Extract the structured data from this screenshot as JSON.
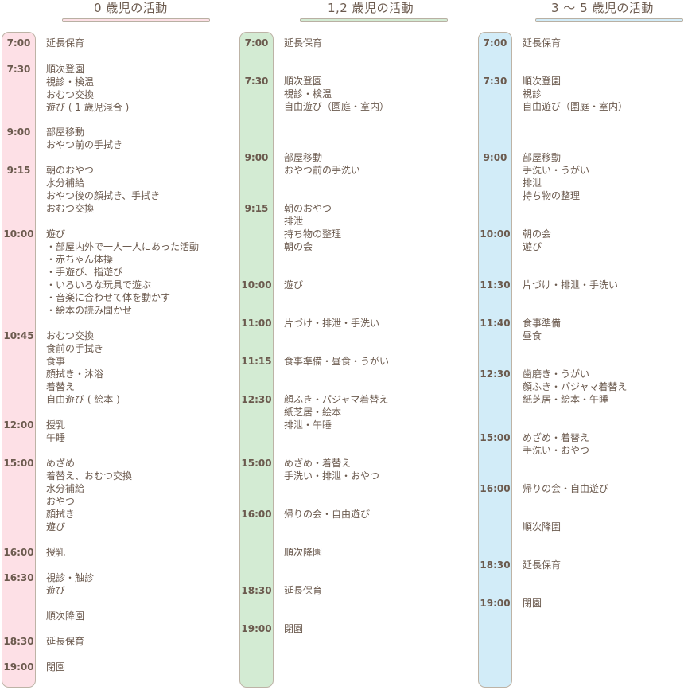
{
  "colors": {
    "text": "#6b5a4e",
    "border": "#bdb3a6",
    "age0_fill": "#fde0e6",
    "age12_fill": "#d3ebd3",
    "age35_fill": "#d2ecf8"
  },
  "columns": [
    {
      "key": "age-0",
      "title": "0 歳児の活動",
      "fill": "#fde0e6",
      "entries": [
        {
          "time": "7:00",
          "lines": [
            "延長保育"
          ]
        },
        {
          "time": "7:30",
          "lines": [
            "順次登園",
            "視診・検温",
            "おむつ交換",
            "遊び ( 1 歳児混合 )"
          ]
        },
        {
          "time": "9:00",
          "lines": [
            "部屋移動",
            "おやつ前の手拭き"
          ]
        },
        {
          "time": "9:15",
          "lines": [
            "朝のおやつ",
            "水分補給",
            "おやつ後の顔拭き、手拭き",
            "おむつ交換"
          ]
        },
        {
          "time": "10:00",
          "lines": [
            "遊び",
            "・部屋内外で一人一人にあった活動",
            "・赤ちゃん体操",
            "・手遊び、指遊び",
            "・いろいろな玩具で遊ぶ",
            "・音楽に合わせて体を動かす",
            "・絵本の読み聞かせ"
          ]
        },
        {
          "time": "10:45",
          "lines": [
            "おむつ交換",
            "食前の手拭き",
            "食事",
            "顔拭き・沐浴",
            "着替え",
            "自由遊び ( 絵本 )"
          ]
        },
        {
          "time": "12:00",
          "lines": [
            "授乳",
            "午睡"
          ]
        },
        {
          "time": "15:00",
          "lines": [
            "めざめ",
            "着替え、おむつ交換",
            "水分補給",
            "おやつ",
            "顔拭き",
            "遊び"
          ]
        },
        {
          "time": "16:00",
          "lines": [
            "授乳"
          ]
        },
        {
          "time": "16:30",
          "lines": [
            "視診・触診",
            "遊び"
          ]
        },
        {
          "time": "",
          "lines": [
            "順次降園"
          ]
        },
        {
          "time": "18:30",
          "lines": [
            "延長保育"
          ]
        },
        {
          "time": "19:00",
          "lines": [
            "閉園"
          ]
        }
      ]
    },
    {
      "key": "age-1-2",
      "title": "1,2 歳児の活動",
      "fill": "#d3ebd3",
      "entries": [
        {
          "time": "7:00",
          "lines": [
            "延長保育"
          ]
        },
        {
          "time": "7:30",
          "lines": [
            "順次登園",
            "視診・検温",
            "自由遊び（園庭・室内）"
          ]
        },
        {
          "time": "9:00",
          "lines": [
            "部屋移動",
            "おやつ前の手洗い"
          ]
        },
        {
          "time": "9:15",
          "lines": [
            "朝のおやつ",
            "排泄",
            "持ち物の整理",
            "朝の会"
          ]
        },
        {
          "time": "10:00",
          "lines": [
            "遊び"
          ]
        },
        {
          "time": "11:00",
          "lines": [
            "片づけ・排泄・手洗い"
          ]
        },
        {
          "time": "11:15",
          "lines": [
            "食事準備・昼食・うがい"
          ]
        },
        {
          "time": "12:30",
          "lines": [
            "顔ふき・パジャマ着替え",
            "紙芝居・絵本",
            "排泄・午睡"
          ]
        },
        {
          "time": "15:00",
          "lines": [
            "めざめ・着替え",
            "手洗い・排泄・おやつ"
          ]
        },
        {
          "time": "16:00",
          "lines": [
            "帰りの会・自由遊び"
          ]
        },
        {
          "time": "",
          "lines": [
            "順次降園"
          ]
        },
        {
          "time": "18:30",
          "lines": [
            "延長保育"
          ]
        },
        {
          "time": "19:00",
          "lines": [
            "閉園"
          ]
        }
      ]
    },
    {
      "key": "age-3-5",
      "title": "3 〜 5 歳児の活動",
      "fill": "#d2ecf8",
      "entries": [
        {
          "time": "7:00",
          "lines": [
            "延長保育"
          ]
        },
        {
          "time": "7:30",
          "lines": [
            "順次登園",
            "視診",
            "自由遊び（園庭・室内）"
          ]
        },
        {
          "time": "9:00",
          "lines": [
            "部屋移動",
            "手洗い・うがい",
            "排泄",
            "持ち物の整理"
          ]
        },
        {
          "time": "10:00",
          "lines": [
            "朝の会",
            "遊び"
          ]
        },
        {
          "time": "11:30",
          "lines": [
            "片づけ・排泄・手洗い"
          ]
        },
        {
          "time": "11:40",
          "lines": [
            "食事準備",
            "昼食"
          ]
        },
        {
          "time": "12:30",
          "lines": [
            "歯磨き・うがい",
            "顔ふき・パジャマ着替え",
            "紙芝居・絵本・午睡"
          ]
        },
        {
          "time": "15:00",
          "lines": [
            "めざめ・着替え",
            "手洗い・おやつ"
          ]
        },
        {
          "time": "16:00",
          "lines": [
            "帰りの会・自由遊び"
          ]
        },
        {
          "time": "",
          "lines": [
            "順次降園"
          ]
        },
        {
          "time": "18:30",
          "lines": [
            "延長保育"
          ]
        },
        {
          "time": "19:00",
          "lines": [
            "閉園"
          ]
        }
      ]
    }
  ]
}
